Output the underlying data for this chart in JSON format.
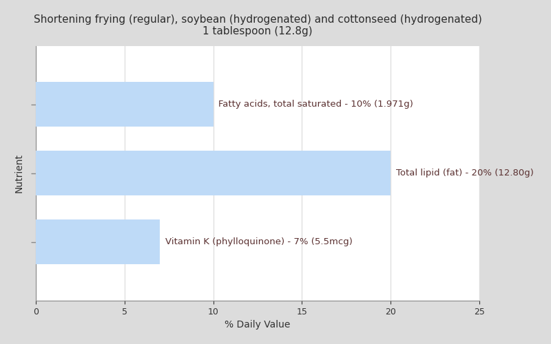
{
  "title_line1": "Shortening frying (regular), soybean (hydrogenated) and cottonseed (hydrogenated)",
  "title_line2": "1 tablespoon (12.8g)",
  "xlabel": "% Daily Value",
  "ylabel": "Nutrient",
  "background_color": "#dcdcdc",
  "plot_bg_color": "#ffffff",
  "bar_color": "#bedaf7",
  "label_color": "#5a3030",
  "bars": [
    {
      "label": "Fatty acids, total saturated - 10% (1.971g)",
      "value": 10
    },
    {
      "label": "Total lipid (fat) - 20% (12.80g)",
      "value": 20
    },
    {
      "label": "Vitamin K (phylloquinone) - 7% (5.5mcg)",
      "value": 7
    }
  ],
  "xlim": [
    0,
    25
  ],
  "xticks": [
    0,
    5,
    10,
    15,
    20,
    25
  ],
  "bar_height": 0.65,
  "figsize": [
    8.0,
    5.0
  ],
  "dpi": 100,
  "title_color": "#2c2c2c",
  "title_fontsize": 11,
  "label_fontsize": 9.5
}
